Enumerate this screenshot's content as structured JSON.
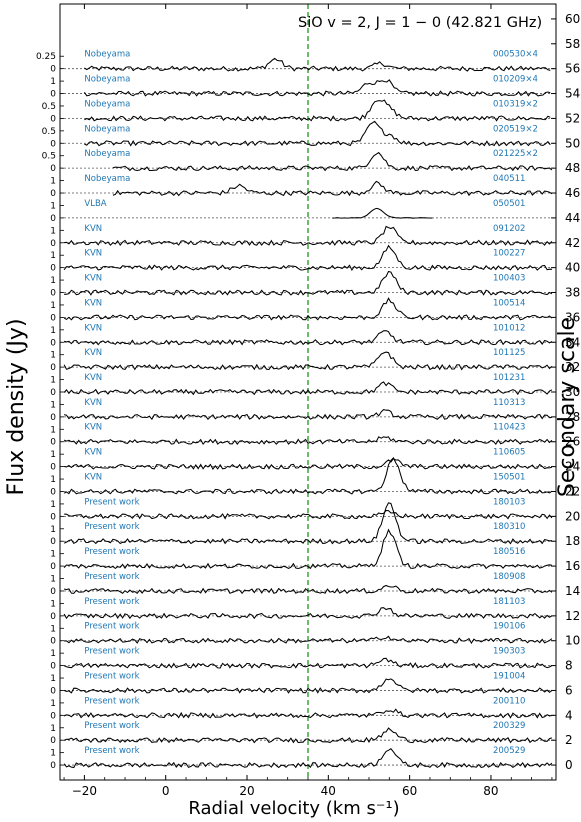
{
  "chart_data": {
    "type": "line",
    "title": "SiO v = 2, J = 1 − 0 (42.821 GHz)",
    "xlabel": "Radial velocity (km s⁻¹)",
    "ylabel": "Flux density (Jy)",
    "ylabel_right": "Secondary scale",
    "xlim": [
      -26,
      96
    ],
    "xticks": [
      -20,
      0,
      20,
      40,
      60,
      80
    ],
    "right_ylim": [
      -1.2,
      61.2
    ],
    "right_ticks": [
      0,
      2,
      4,
      6,
      8,
      10,
      12,
      14,
      16,
      18,
      20,
      22,
      24,
      26,
      28,
      30,
      32,
      34,
      36,
      38,
      40,
      42,
      44,
      46,
      48,
      50,
      52,
      54,
      56,
      58,
      60
    ],
    "reference_velocity": 35,
    "grid": false,
    "series": [
      {
        "name": "Nobeyama",
        "date": "000530×4",
        "offset": 56,
        "ticks": [
          "0.25",
          "0"
        ],
        "xrange": [
          -20,
          95
        ],
        "peaks": [
          [
            27,
            0.9
          ],
          [
            53,
            0.5
          ]
        ]
      },
      {
        "name": "Nobeyama",
        "date": "010209×4",
        "offset": 54,
        "ticks": [
          "1",
          "0"
        ],
        "xrange": [
          -20,
          95
        ],
        "peaks": [
          [
            50,
            1.0
          ],
          [
            54,
            1.3
          ]
        ]
      },
      {
        "name": "Nobeyama",
        "date": "010319×2",
        "offset": 52,
        "ticks": [
          "0.5",
          "0"
        ],
        "xrange": [
          -20,
          95
        ],
        "peaks": [
          [
            52,
            1.7
          ],
          [
            55,
            0.8
          ]
        ]
      },
      {
        "name": "Nobeyama",
        "date": "020519×2",
        "offset": 50,
        "ticks": [
          "0.5",
          "0"
        ],
        "xrange": [
          -20,
          95
        ],
        "peaks": [
          [
            51,
            1.9
          ],
          [
            55,
            0.8
          ]
        ]
      },
      {
        "name": "Nobeyama",
        "date": "021225×2",
        "offset": 48,
        "ticks": [
          "0.5",
          "0"
        ],
        "xrange": [
          -13,
          95
        ],
        "peaks": [
          [
            52,
            1.5
          ]
        ]
      },
      {
        "name": "Nobeyama",
        "date": "040511",
        "offset": 46,
        "ticks": [
          "1",
          "0"
        ],
        "xrange": [
          -13,
          95
        ],
        "peaks": [
          [
            18,
            0.7
          ],
          [
            52,
            0.9
          ]
        ]
      },
      {
        "name": "VLBA",
        "date": "050501",
        "offset": 44,
        "ticks": [
          "1",
          "0"
        ],
        "xrange": [
          41,
          66
        ],
        "peaks": [
          [
            52,
            0.9
          ]
        ]
      },
      {
        "name": "KVN",
        "date": "091202",
        "offset": 42,
        "ticks": [
          "1",
          "0"
        ],
        "xrange": [
          -25,
          95
        ],
        "peaks": [
          [
            55,
            1.5
          ]
        ]
      },
      {
        "name": "KVN",
        "date": "100227",
        "offset": 40,
        "ticks": [
          "1",
          "0"
        ],
        "xrange": [
          -25,
          95
        ],
        "peaks": [
          [
            55,
            1.9
          ]
        ]
      },
      {
        "name": "KVN",
        "date": "100403",
        "offset": 38,
        "ticks": [
          "1",
          "0"
        ],
        "xrange": [
          -25,
          95
        ],
        "peaks": [
          [
            55,
            1.9
          ]
        ]
      },
      {
        "name": "KVN",
        "date": "100514",
        "offset": 36,
        "ticks": [
          "1",
          "0"
        ],
        "xrange": [
          -25,
          95
        ],
        "peaks": [
          [
            55,
            1.6
          ]
        ]
      },
      {
        "name": "KVN",
        "date": "101012",
        "offset": 34,
        "ticks": [
          "1",
          "0"
        ],
        "xrange": [
          -25,
          95
        ],
        "peaks": [
          [
            54,
            1.0
          ]
        ]
      },
      {
        "name": "KVN",
        "date": "101125",
        "offset": 32,
        "ticks": [
          "1",
          "0"
        ],
        "xrange": [
          -25,
          95
        ],
        "peaks": [
          [
            54,
            1.5
          ]
        ]
      },
      {
        "name": "KVN",
        "date": "101231",
        "offset": 30,
        "ticks": [
          "1",
          "0"
        ],
        "xrange": [
          -25,
          95
        ],
        "peaks": [
          [
            54,
            0.8
          ]
        ]
      },
      {
        "name": "KVN",
        "date": "110313",
        "offset": 28,
        "ticks": [
          "1",
          "0"
        ],
        "xrange": [
          -25,
          95
        ],
        "peaks": [
          [
            54,
            0.5
          ]
        ]
      },
      {
        "name": "KVN",
        "date": "110423",
        "offset": 26,
        "ticks": [
          "1",
          "0"
        ],
        "xrange": [
          -25,
          95
        ],
        "peaks": [
          [
            54,
            0.4
          ]
        ]
      },
      {
        "name": "KVN",
        "date": "110605",
        "offset": 24,
        "ticks": [
          "1",
          "0"
        ],
        "xrange": [
          -25,
          95
        ],
        "peaks": [
          [
            56,
            0.6
          ]
        ]
      },
      {
        "name": "KVN",
        "date": "150501",
        "offset": 22,
        "ticks": [
          "1",
          "0"
        ],
        "xrange": [
          -25,
          95
        ],
        "peaks": [
          [
            56,
            3.1
          ]
        ]
      },
      {
        "name": "Present work",
        "date": "180103",
        "offset": 20,
        "ticks": [
          "1",
          "0"
        ],
        "xrange": [
          -25,
          95
        ],
        "peaks": [
          [
            55,
            0.4
          ]
        ]
      },
      {
        "name": "Present work",
        "date": "180310",
        "offset": 18,
        "ticks": [
          "1",
          "0"
        ],
        "xrange": [
          -25,
          95
        ],
        "peaks": [
          [
            55,
            3.6
          ]
        ]
      },
      {
        "name": "Present work",
        "date": "180516",
        "offset": 16,
        "ticks": [
          "1",
          "0"
        ],
        "xrange": [
          -25,
          95
        ],
        "peaks": [
          [
            55,
            3.3
          ]
        ]
      },
      {
        "name": "Present work",
        "date": "180908",
        "offset": 14,
        "ticks": [
          "1",
          "0"
        ],
        "xrange": [
          -25,
          95
        ],
        "peaks": [
          [
            55,
            0.5
          ]
        ]
      },
      {
        "name": "Present work",
        "date": "181103",
        "offset": 12,
        "ticks": [
          "1",
          "0"
        ],
        "xrange": [
          -25,
          95
        ],
        "peaks": [
          [
            54,
            0.8
          ]
        ]
      },
      {
        "name": "Present work",
        "date": "190106",
        "offset": 10,
        "ticks": [
          "1",
          "0"
        ],
        "xrange": [
          -25,
          95
        ],
        "peaks": [
          [
            54,
            0.4
          ]
        ]
      },
      {
        "name": "Present work",
        "date": "190303",
        "offset": 8,
        "ticks": [
          "1",
          "0"
        ],
        "xrange": [
          -25,
          95
        ],
        "peaks": [
          [
            54,
            0.6
          ]
        ]
      },
      {
        "name": "Present work",
        "date": "191004",
        "offset": 6,
        "ticks": [
          "1",
          "0"
        ],
        "xrange": [
          -25,
          95
        ],
        "peaks": [
          [
            55,
            1.2
          ]
        ]
      },
      {
        "name": "Present work",
        "date": "200110",
        "offset": 4,
        "ticks": [
          "1",
          "0"
        ],
        "xrange": [
          -25,
          95
        ],
        "peaks": [
          [
            55,
            0.6
          ]
        ]
      },
      {
        "name": "Present work",
        "date": "200329",
        "offset": 2,
        "ticks": [
          "1",
          "0"
        ],
        "xrange": [
          -25,
          95
        ],
        "peaks": [
          [
            55,
            1.0
          ]
        ]
      },
      {
        "name": "Present work",
        "date": "200529",
        "offset": 0,
        "ticks": [
          "1",
          "0"
        ],
        "xrange": [
          -25,
          95
        ],
        "peaks": [
          [
            55,
            1.6
          ]
        ]
      }
    ]
  }
}
